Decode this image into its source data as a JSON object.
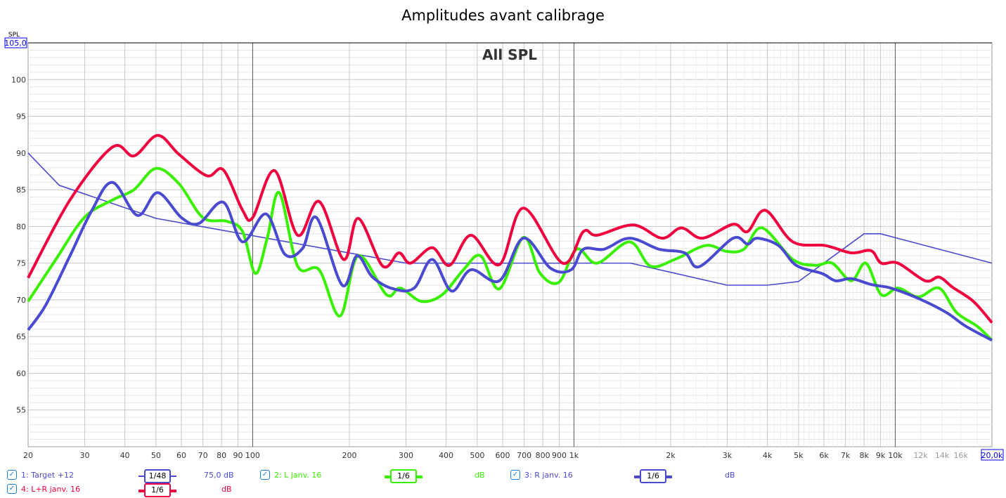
{
  "title": "Amplitudes avant calibrage",
  "chart_data": {
    "type": "line",
    "title": "Amplitudes avant calibrage",
    "subtitle": "All SPL",
    "ylabel": "SPL",
    "x_scale": "log",
    "xlim": [
      20,
      20000
    ],
    "ylim": [
      50,
      105
    ],
    "ylim_top_label": "105,0",
    "xlim_right_label": "20,0k",
    "grid": true,
    "y_ticks": [
      "55",
      "60",
      "65",
      "70",
      "75",
      "80",
      "85",
      "90",
      "95",
      "100"
    ],
    "x_ticks": [
      {
        "f": 20,
        "l": "20"
      },
      {
        "f": 30,
        "l": "30"
      },
      {
        "f": 40,
        "l": "40"
      },
      {
        "f": 50,
        "l": "50"
      },
      {
        "f": 60,
        "l": "60"
      },
      {
        "f": 70,
        "l": "70"
      },
      {
        "f": 80,
        "l": "80"
      },
      {
        "f": 90,
        "l": "90"
      },
      {
        "f": 100,
        "l": "100"
      },
      {
        "f": 200,
        "l": "200"
      },
      {
        "f": 300,
        "l": "300"
      },
      {
        "f": 400,
        "l": "400"
      },
      {
        "f": 500,
        "l": "500"
      },
      {
        "f": 600,
        "l": "600"
      },
      {
        "f": 700,
        "l": "700"
      },
      {
        "f": 800,
        "l": "800"
      },
      {
        "f": 900,
        "l": "900"
      },
      {
        "f": 1000,
        "l": "1k"
      },
      {
        "f": 2000,
        "l": "2k"
      },
      {
        "f": 3000,
        "l": "3k"
      },
      {
        "f": 4000,
        "l": "4k"
      },
      {
        "f": 5000,
        "l": "5k"
      },
      {
        "f": 6000,
        "l": "6k"
      },
      {
        "f": 7000,
        "l": "7k"
      },
      {
        "f": 8000,
        "l": "8k"
      },
      {
        "f": 9000,
        "l": "9k"
      },
      {
        "f": 10000,
        "l": "10k"
      },
      {
        "f": 12000,
        "l": "12k"
      },
      {
        "f": 14000,
        "l": "14k"
      },
      {
        "f": 16000,
        "l": "16k"
      }
    ],
    "series": [
      {
        "name": "1: Target +12",
        "color": "#4a4ad0",
        "width": 1.6,
        "smooth": false,
        "smoothing": "1/48",
        "offset": "75,0 dB",
        "points": [
          [
            20,
            90
          ],
          [
            25,
            85.6
          ],
          [
            50,
            81.1
          ],
          [
            300,
            75
          ],
          [
            1500,
            75
          ],
          [
            3000,
            72
          ],
          [
            4000,
            72
          ],
          [
            5000,
            72.5
          ],
          [
            8000,
            79
          ],
          [
            9000,
            79
          ],
          [
            20000,
            75
          ]
        ]
      },
      {
        "name": "2: L janv. 16",
        "color": "#39f000",
        "width": 4,
        "smooth": true,
        "smoothing": "1/6",
        "offset": "dB",
        "points": [
          [
            20,
            69.8
          ],
          [
            24.4,
            75.5
          ],
          [
            29.9,
            81.2
          ],
          [
            36.6,
            83.6
          ],
          [
            42.7,
            85
          ],
          [
            50,
            87.9
          ],
          [
            59,
            85.8
          ],
          [
            70,
            81.2
          ],
          [
            83,
            80.7
          ],
          [
            93,
            79.3
          ],
          [
            102,
            73.6
          ],
          [
            111,
            78.4
          ],
          [
            121,
            84.6
          ],
          [
            138,
            74.6
          ],
          [
            161,
            74.1
          ],
          [
            187,
            67.8
          ],
          [
            213,
            76
          ],
          [
            261,
            70.7
          ],
          [
            288,
            71.6
          ],
          [
            335,
            69.8
          ],
          [
            389,
            70.7
          ],
          [
            453,
            74.1
          ],
          [
            512,
            76
          ],
          [
            586,
            71.5
          ],
          [
            696,
            78.5
          ],
          [
            785,
            73.6
          ],
          [
            898,
            72.4
          ],
          [
            1020,
            76.9
          ],
          [
            1180,
            75
          ],
          [
            1490,
            77.9
          ],
          [
            1730,
            74.6
          ],
          [
            2060,
            75.5
          ],
          [
            2570,
            77.4
          ],
          [
            2990,
            76.6
          ],
          [
            3380,
            76.9
          ],
          [
            3850,
            79.8
          ],
          [
            4800,
            75.5
          ],
          [
            5640,
            74.7
          ],
          [
            6360,
            75
          ],
          [
            7300,
            72.6
          ],
          [
            8100,
            75
          ],
          [
            9050,
            70.7
          ],
          [
            10200,
            71.6
          ],
          [
            11800,
            70.4
          ],
          [
            13700,
            71.6
          ],
          [
            15500,
            68.3
          ],
          [
            18000,
            66.4
          ],
          [
            20000,
            64.5
          ]
        ]
      },
      {
        "name": "3: R janv. 16",
        "color": "#4a4ad0",
        "width": 4,
        "smooth": true,
        "smoothing": "1/6",
        "offset": "dB",
        "points": [
          [
            20,
            65.9
          ],
          [
            22.7,
            69.3
          ],
          [
            27,
            76
          ],
          [
            31.6,
            82.2
          ],
          [
            36.6,
            86
          ],
          [
            43.8,
            81.5
          ],
          [
            50.6,
            84.6
          ],
          [
            60,
            81.2
          ],
          [
            68,
            80.4
          ],
          [
            81,
            83.3
          ],
          [
            93,
            77.9
          ],
          [
            110,
            81.7
          ],
          [
            126,
            76.2
          ],
          [
            143,
            77
          ],
          [
            158,
            81.2
          ],
          [
            190,
            72
          ],
          [
            211,
            76
          ],
          [
            236,
            73.1
          ],
          [
            274,
            71.5
          ],
          [
            318,
            71.6
          ],
          [
            362,
            75.5
          ],
          [
            416,
            71.2
          ],
          [
            478,
            74.1
          ],
          [
            586,
            72.6
          ],
          [
            696,
            78.4
          ],
          [
            846,
            74.3
          ],
          [
            980,
            74.1
          ],
          [
            1070,
            76.9
          ],
          [
            1240,
            76.9
          ],
          [
            1490,
            78.4
          ],
          [
            1840,
            76.9
          ],
          [
            2210,
            76.4
          ],
          [
            2450,
            74.5
          ],
          [
            3130,
            78.4
          ],
          [
            3470,
            77.6
          ],
          [
            3720,
            78.4
          ],
          [
            4330,
            77.4
          ],
          [
            4920,
            74.7
          ],
          [
            5910,
            73.6
          ],
          [
            6520,
            72.6
          ],
          [
            7300,
            72.9
          ],
          [
            8400,
            72.1
          ],
          [
            9700,
            71.6
          ],
          [
            11800,
            70.2
          ],
          [
            14400,
            68.3
          ],
          [
            16600,
            66.4
          ],
          [
            20000,
            64.5
          ]
        ]
      },
      {
        "name": "4: L+R janv. 16",
        "color": "#f0003c",
        "width": 4,
        "smooth": true,
        "smoothing": "1/6",
        "offset": "dB",
        "points": [
          [
            20,
            73
          ],
          [
            27,
            83.6
          ],
          [
            36.6,
            90.8
          ],
          [
            42.7,
            89.6
          ],
          [
            50.6,
            92.4
          ],
          [
            59,
            89.8
          ],
          [
            72,
            86.9
          ],
          [
            81,
            87.7
          ],
          [
            93,
            82.2
          ],
          [
            100,
            81.2
          ],
          [
            117,
            87.6
          ],
          [
            138,
            78.8
          ],
          [
            161,
            83.4
          ],
          [
            192,
            75.5
          ],
          [
            213,
            81.1
          ],
          [
            254,
            74.6
          ],
          [
            285,
            76.4
          ],
          [
            310,
            75
          ],
          [
            362,
            77.1
          ],
          [
            410,
            74.7
          ],
          [
            478,
            78.8
          ],
          [
            586,
            74.8
          ],
          [
            696,
            82.5
          ],
          [
            922,
            75
          ],
          [
            1070,
            79.3
          ],
          [
            1180,
            78.8
          ],
          [
            1530,
            80.2
          ],
          [
            1880,
            78.4
          ],
          [
            2160,
            79.8
          ],
          [
            2510,
            78.4
          ],
          [
            3130,
            80.3
          ],
          [
            3470,
            79.3
          ],
          [
            3940,
            82.2
          ],
          [
            4800,
            77.9
          ],
          [
            6060,
            77.4
          ],
          [
            7300,
            76.4
          ],
          [
            8400,
            76.7
          ],
          [
            9050,
            75
          ],
          [
            10200,
            75
          ],
          [
            12400,
            72.6
          ],
          [
            13700,
            73.1
          ],
          [
            15100,
            71.7
          ],
          [
            17500,
            69.8
          ],
          [
            20000,
            66.9
          ]
        ]
      }
    ]
  }
}
